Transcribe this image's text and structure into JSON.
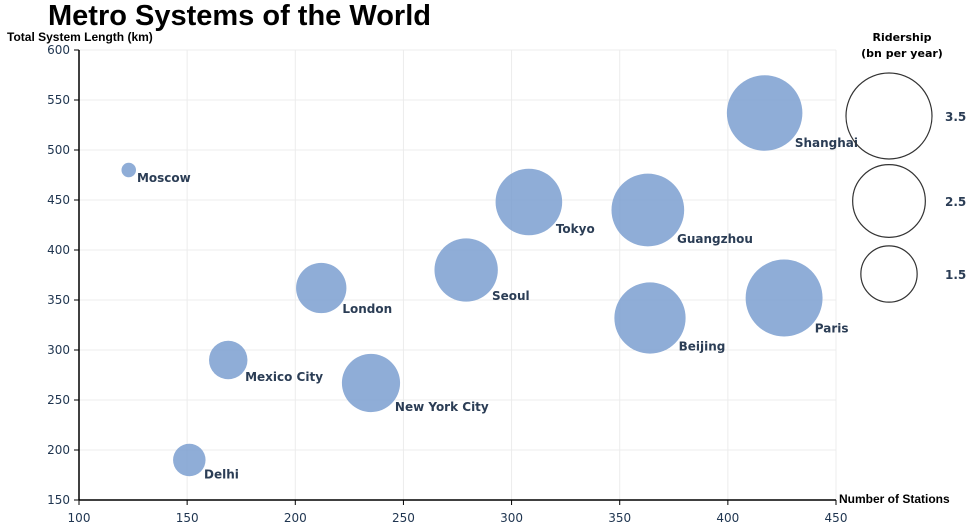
{
  "chart_data": {
    "type": "scatter",
    "title": "Metro Systems of the World",
    "xlabel": "Number of Stations",
    "ylabel": "Total System Length (km)",
    "xlim": [
      100,
      450
    ],
    "ylim": [
      150,
      600
    ],
    "xticks": [
      100,
      150,
      200,
      250,
      300,
      350,
      400,
      450
    ],
    "yticks": [
      150,
      200,
      250,
      300,
      350,
      400,
      450,
      500,
      550,
      600
    ],
    "grid": true,
    "bubble_color": "#7b9fd0",
    "size_legend": {
      "title_lines": [
        "Ridership",
        "(bn per year)"
      ],
      "values": [
        3.5,
        2.5,
        1.5
      ],
      "labels": [
        "3.5",
        "2.5",
        "1.5"
      ],
      "placement": "right"
    },
    "points": [
      {
        "name": "Moscow",
        "x": 123,
        "y": 480,
        "size": 0.1
      },
      {
        "name": "Delhi",
        "x": 151,
        "y": 190,
        "size": 0.5
      },
      {
        "name": "Mexico City",
        "x": 169,
        "y": 290,
        "size": 0.7
      },
      {
        "name": "London",
        "x": 212,
        "y": 362,
        "size": 1.2
      },
      {
        "name": "New York City",
        "x": 235,
        "y": 267,
        "size": 1.6
      },
      {
        "name": "Seoul",
        "x": 279,
        "y": 380,
        "size": 1.9
      },
      {
        "name": "Tokyo",
        "x": 308,
        "y": 448,
        "size": 2.1
      },
      {
        "name": "Guangzhou",
        "x": 363,
        "y": 440,
        "size": 2.5
      },
      {
        "name": "Beijing",
        "x": 364,
        "y": 332,
        "size": 2.4
      },
      {
        "name": "Shanghai",
        "x": 417,
        "y": 537,
        "size": 2.7
      },
      {
        "name": "Paris",
        "x": 426,
        "y": 352,
        "size": 2.8
      }
    ]
  }
}
